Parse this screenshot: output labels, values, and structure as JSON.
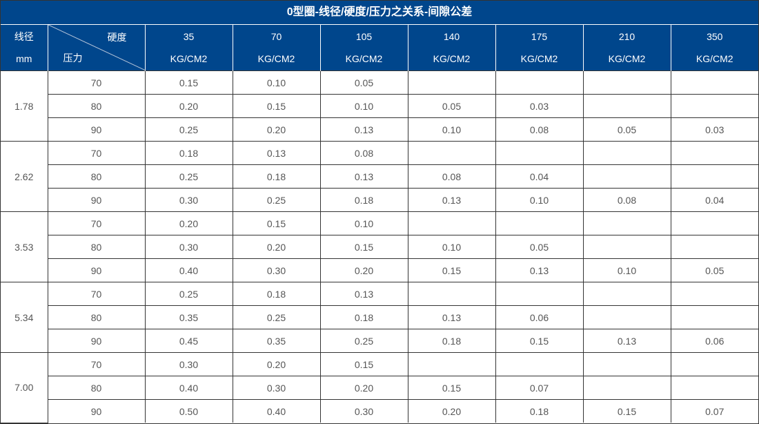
{
  "title": "0型圈-线径/硬度/压力之关系-间隙公差",
  "header": {
    "diameter_label": "线径",
    "diameter_unit": "mm",
    "hardness_label": "硬度",
    "pressure_label": "压力",
    "pressures": [
      "35",
      "70",
      "105",
      "140",
      "175",
      "210",
      "350"
    ],
    "unit": "KG/CM2"
  },
  "colors": {
    "header_bg": "#00468c",
    "text": "#555555"
  },
  "groups": [
    {
      "diameter": "1.78",
      "rows": [
        {
          "hardness": "70",
          "values": [
            "0.15",
            "0.10",
            "0.05",
            "",
            "",
            "",
            ""
          ]
        },
        {
          "hardness": "80",
          "values": [
            "0.20",
            "0.15",
            "0.10",
            "0.05",
            "0.03",
            "",
            ""
          ]
        },
        {
          "hardness": "90",
          "values": [
            "0.25",
            "0.20",
            "0.13",
            "0.10",
            "0.08",
            "0.05",
            "0.03"
          ]
        }
      ]
    },
    {
      "diameter": "2.62",
      "rows": [
        {
          "hardness": "70",
          "values": [
            "0.18",
            "0.13",
            "0.08",
            "",
            "",
            "",
            ""
          ]
        },
        {
          "hardness": "80",
          "values": [
            "0.25",
            "0.18",
            "0.13",
            "0.08",
            "0.04",
            "",
            ""
          ]
        },
        {
          "hardness": "90",
          "values": [
            "0.30",
            "0.25",
            "0.18",
            "0.13",
            "0.10",
            "0.08",
            "0.04"
          ]
        }
      ]
    },
    {
      "diameter": "3.53",
      "rows": [
        {
          "hardness": "70",
          "values": [
            "0.20",
            "0.15",
            "0.10",
            "",
            "",
            "",
            ""
          ]
        },
        {
          "hardness": "80",
          "values": [
            "0.30",
            "0.20",
            "0.15",
            "0.10",
            "0.05",
            "",
            ""
          ]
        },
        {
          "hardness": "90",
          "values": [
            "0.40",
            "0.30",
            "0.20",
            "0.15",
            "0.13",
            "0.10",
            "0.05"
          ]
        }
      ]
    },
    {
      "diameter": "5.34",
      "rows": [
        {
          "hardness": "70",
          "values": [
            "0.25",
            "0.18",
            "0.13",
            "",
            "",
            "",
            ""
          ]
        },
        {
          "hardness": "80",
          "values": [
            "0.35",
            "0.25",
            "0.18",
            "0.13",
            "0.06",
            "",
            ""
          ]
        },
        {
          "hardness": "90",
          "values": [
            "0.45",
            "0.35",
            "0.25",
            "0.18",
            "0.15",
            "0.13",
            "0.06"
          ]
        }
      ]
    },
    {
      "diameter": "7.00",
      "rows": [
        {
          "hardness": "70",
          "values": [
            "0.30",
            "0.20",
            "0.15",
            "",
            "",
            "",
            ""
          ]
        },
        {
          "hardness": "80",
          "values": [
            "0.40",
            "0.30",
            "0.20",
            "0.15",
            "0.07",
            "",
            ""
          ]
        },
        {
          "hardness": "90",
          "values": [
            "0.50",
            "0.40",
            "0.30",
            "0.20",
            "0.18",
            "0.15",
            "0.07"
          ]
        }
      ]
    }
  ]
}
